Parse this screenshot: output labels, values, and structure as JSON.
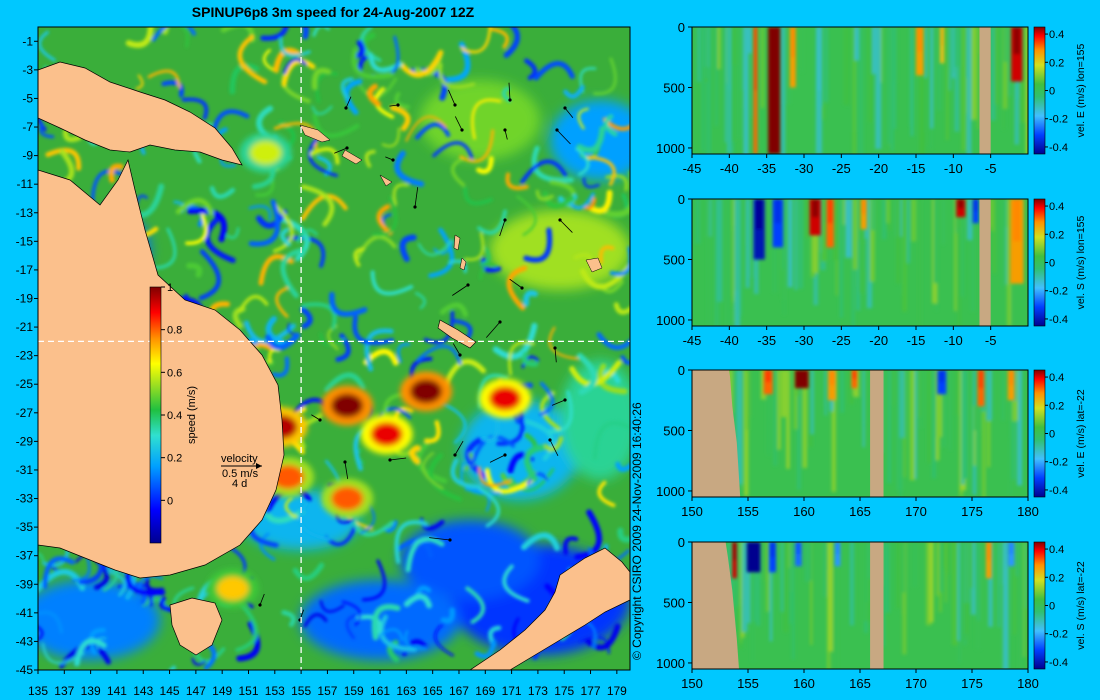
{
  "title": "SPINUP6p8 3m speed for 24-Aug-2007 12Z",
  "copyright": "© Copyright CSIRO 2009   24-Nov-2009 16:40:26",
  "chart_data": [
    {
      "id": "map",
      "type": "heatmap",
      "title": "SPINUP6p8 3m speed for 24-Aug-2007 12Z",
      "x_ticks": [
        135,
        137,
        139,
        141,
        143,
        145,
        147,
        149,
        151,
        153,
        155,
        157,
        159,
        161,
        163,
        165,
        167,
        169,
        171,
        173,
        175,
        177,
        179
      ],
      "y_ticks": [
        -1,
        -3,
        -5,
        -7,
        -9,
        -11,
        -13,
        -15,
        -17,
        -19,
        -21,
        -23,
        -25,
        -27,
        -29,
        -31,
        -33,
        -35,
        -37,
        -39,
        -41,
        -43,
        -45
      ],
      "xlim": [
        135,
        180
      ],
      "ylim": [
        -45,
        0
      ],
      "crosshair": {
        "lon": 155,
        "lat": -22
      },
      "colorbar": {
        "label": "speed (m/s)",
        "ticks": [
          1,
          0.8,
          0.6,
          0.4,
          0.2,
          0
        ],
        "range": [
          -0.2,
          1
        ]
      },
      "legend": {
        "label": "velocity",
        "speed": "0.5 m/s",
        "duration": "4 d"
      },
      "hotspots": [
        {
          "lon": 158.5,
          "lat": -26.5,
          "speed": 1.0
        },
        {
          "lon": 164.5,
          "lat": -25.5,
          "speed": 1.0
        },
        {
          "lon": 161.5,
          "lat": -28.5,
          "speed": 0.9
        },
        {
          "lon": 170.5,
          "lat": -26.0,
          "speed": 0.9
        },
        {
          "lon": 153.5,
          "lat": -28.0,
          "speed": 0.95
        },
        {
          "lon": 154.0,
          "lat": -31.5,
          "speed": 0.8
        },
        {
          "lon": 158.5,
          "lat": -33.0,
          "speed": 0.8
        },
        {
          "lon": 149.8,
          "lat": -39.3,
          "speed": 0.7
        },
        {
          "lon": 152.3,
          "lat": -8.8,
          "speed": 0.6
        }
      ]
    },
    {
      "id": "p1",
      "type": "heatmap",
      "x_ticks": [
        -45,
        -40,
        -35,
        -30,
        -25,
        -20,
        -15,
        -10,
        -5
      ],
      "xlim": [
        -45,
        0
      ],
      "y_ticks": [
        0,
        500,
        1000
      ],
      "ylim": [
        1050,
        0
      ],
      "colorbar": {
        "label": "vel. E (m/s) lon=155",
        "ticks": [
          0.4,
          0.2,
          0,
          -0.2,
          -0.4
        ],
        "range": [
          -0.45,
          0.45
        ]
      },
      "land_x": [
        [
          -6.5,
          -5
        ]
      ],
      "features": [
        {
          "x": -34,
          "w": 1.6,
          "v": 0.45,
          "d": 1050
        },
        {
          "x": -36.5,
          "w": 0.5,
          "v": 0.3,
          "d": 1050
        },
        {
          "x": -31.5,
          "w": 0.8,
          "v": 0.25,
          "d": 500
        },
        {
          "x": -14.5,
          "w": 1.0,
          "v": 0.25,
          "d": 400
        },
        {
          "x": -11.5,
          "w": 0.6,
          "v": 0.2,
          "d": 300
        },
        {
          "x": -1.5,
          "w": 1.5,
          "v": 0.4,
          "d": 450
        },
        {
          "x": -28,
          "w": 0.8,
          "v": -0.1,
          "d": 1050
        },
        {
          "x": -40,
          "w": 0.6,
          "v": -0.08,
          "d": 1050
        }
      ]
    },
    {
      "id": "p2",
      "type": "heatmap",
      "x_ticks": [
        -45,
        -40,
        -35,
        -30,
        -25,
        -20,
        -15,
        -10,
        -5
      ],
      "xlim": [
        -45,
        0
      ],
      "y_ticks": [
        0,
        500,
        1000
      ],
      "ylim": [
        1050,
        0
      ],
      "colorbar": {
        "label": "vel. S (m/s) lon=155",
        "ticks": [
          0.4,
          0.2,
          0,
          -0.2,
          -0.4
        ],
        "range": [
          -0.45,
          0.45
        ]
      },
      "land_x": [
        [
          -6.5,
          -5
        ]
      ],
      "features": [
        {
          "x": -36,
          "w": 1.5,
          "v": -0.4,
          "d": 500
        },
        {
          "x": -33.5,
          "w": 1.4,
          "v": -0.3,
          "d": 400
        },
        {
          "x": -28.5,
          "w": 1.5,
          "v": 0.4,
          "d": 300
        },
        {
          "x": -26.5,
          "w": 1.0,
          "v": 0.3,
          "d": 400
        },
        {
          "x": -9,
          "w": 1.2,
          "v": 0.4,
          "d": 150
        },
        {
          "x": -7,
          "w": 0.8,
          "v": -0.3,
          "d": 200
        },
        {
          "x": -1.5,
          "w": 1.8,
          "v": 0.25,
          "d": 700
        },
        {
          "x": -22,
          "w": 0.8,
          "v": 0.25,
          "d": 250
        }
      ]
    },
    {
      "id": "p3",
      "type": "heatmap",
      "x_ticks": [
        150,
        155,
        160,
        165,
        170,
        175,
        180
      ],
      "xlim": [
        150,
        180
      ],
      "y_ticks": [
        0,
        500,
        1000
      ],
      "ylim": [
        1050,
        0
      ],
      "colorbar": {
        "label": "vel. E (m/s) lat=-22",
        "ticks": [
          0.4,
          0.2,
          0,
          -0.2,
          -0.4
        ],
        "range": [
          -0.45,
          0.45
        ]
      },
      "land_x": [
        [
          165.9,
          167.1
        ]
      ],
      "land_coast": [
        [
          150,
          0
        ],
        [
          153.3,
          0
        ],
        [
          153.4,
          60
        ],
        [
          153.6,
          300
        ],
        [
          154.0,
          600
        ],
        [
          154.3,
          1050
        ],
        [
          150,
          1050
        ]
      ],
      "features": [
        {
          "x": 159.8,
          "w": 1.2,
          "v": 0.45,
          "d": 150
        },
        {
          "x": 156.8,
          "w": 0.8,
          "v": 0.3,
          "d": 200
        },
        {
          "x": 162.5,
          "w": 0.7,
          "v": 0.25,
          "d": 250
        },
        {
          "x": 164.5,
          "w": 0.5,
          "v": 0.3,
          "d": 150
        },
        {
          "x": 172.3,
          "w": 0.8,
          "v": -0.3,
          "d": 200
        },
        {
          "x": 175.8,
          "w": 0.6,
          "v": 0.3,
          "d": 300
        },
        {
          "x": 178.5,
          "w": 0.6,
          "v": 0.25,
          "d": 250
        }
      ]
    },
    {
      "id": "p4",
      "type": "heatmap",
      "x_ticks": [
        150,
        155,
        160,
        165,
        170,
        175,
        180
      ],
      "xlim": [
        150,
        180
      ],
      "y_ticks": [
        0,
        500,
        1000
      ],
      "ylim": [
        1050,
        0
      ],
      "colorbar": {
        "label": "vel. S (m/s) lat=-22",
        "ticks": [
          0.4,
          0.2,
          0,
          -0.2,
          -0.4
        ],
        "range": [
          -0.45,
          0.45
        ]
      },
      "land_x": [
        [
          165.9,
          167.1
        ]
      ],
      "land_coast": [
        [
          150,
          0
        ],
        [
          153.0,
          0
        ],
        [
          153.2,
          120
        ],
        [
          153.6,
          400
        ],
        [
          154.0,
          800
        ],
        [
          154.2,
          1050
        ],
        [
          150,
          1050
        ]
      ],
      "features": [
        {
          "x": 153.8,
          "w": 0.4,
          "v": 0.4,
          "d": 300
        },
        {
          "x": 155.5,
          "w": 1.2,
          "v": -0.45,
          "d": 250
        },
        {
          "x": 157.2,
          "w": 0.6,
          "v": -0.3,
          "d": 250
        },
        {
          "x": 159.5,
          "w": 0.6,
          "v": -0.25,
          "d": 200
        },
        {
          "x": 163,
          "w": 0.5,
          "v": -0.2,
          "d": 200
        },
        {
          "x": 176.5,
          "w": 0.5,
          "v": 0.25,
          "d": 300
        },
        {
          "x": 178.5,
          "w": 0.6,
          "v": -0.2,
          "d": 200
        }
      ]
    }
  ]
}
